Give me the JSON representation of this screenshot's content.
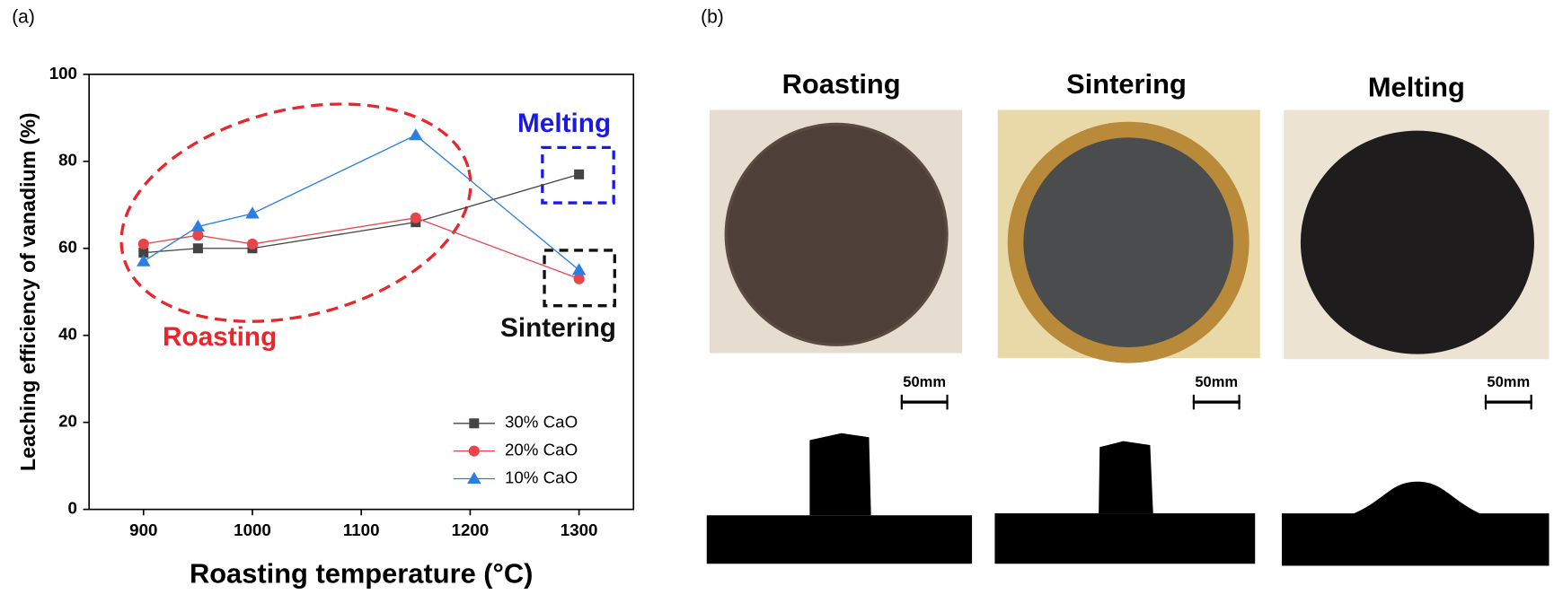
{
  "chart_data": {
    "type": "line",
    "panel_label": "(a)",
    "x_label": "Roasting temperature (°C)",
    "y_label": "Leaching efficiency of vanadium (%)",
    "x": [
      900,
      950,
      1000,
      1150,
      1300
    ],
    "series": [
      {
        "name": "30% CaO",
        "color": "#444444",
        "marker": "square",
        "values": [
          59,
          60,
          60,
          66,
          77
        ]
      },
      {
        "name": "20% CaO",
        "color": "#e8454a",
        "marker": "circle",
        "values": [
          61,
          63,
          61,
          67,
          53
        ]
      },
      {
        "name": "10% CaO",
        "color": "#2b7fe0",
        "marker": "triangle",
        "values": [
          57,
          65,
          68,
          86,
          55
        ]
      }
    ],
    "xlim": [
      850,
      1350
    ],
    "xticks": [
      900,
      1000,
      1100,
      1200,
      1300
    ],
    "ylim": [
      0,
      100
    ],
    "yticks": [
      0,
      20,
      40,
      60,
      80,
      100
    ],
    "legend": "lower right",
    "annotations": [
      {
        "text": "Roasting",
        "color": "#e8262b"
      },
      {
        "text": "Melting",
        "color": "#1a1ae6"
      },
      {
        "text": "Sintering",
        "color": "#111111"
      }
    ]
  },
  "panel_b": {
    "panel_label": "(b)",
    "titles": [
      "Roasting",
      "Sintering",
      "Melting"
    ],
    "scale_labels": [
      "50mm",
      "50mm",
      "50mm"
    ]
  }
}
